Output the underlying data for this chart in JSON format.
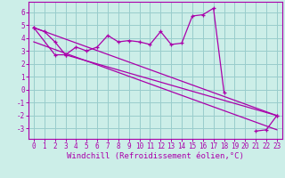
{
  "bg_color": "#cceee8",
  "grid_color": "#99cccc",
  "line_color": "#aa00aa",
  "xlabel": "Windchill (Refroidissement éolien,°C)",
  "xlim": [
    -0.5,
    23.5
  ],
  "ylim": [
    -3.8,
    6.8
  ],
  "yticks": [
    -3,
    -2,
    -1,
    0,
    1,
    2,
    3,
    4,
    5,
    6
  ],
  "xticks": [
    0,
    1,
    2,
    3,
    4,
    5,
    6,
    7,
    8,
    9,
    10,
    11,
    12,
    13,
    14,
    15,
    16,
    17,
    18,
    19,
    20,
    21,
    22,
    23
  ],
  "series1_x": [
    0,
    1,
    2,
    3,
    4,
    5,
    6,
    7,
    8,
    9,
    10,
    11,
    12,
    13,
    14,
    15,
    16,
    17,
    18,
    21,
    22,
    23
  ],
  "series1_y": [
    4.8,
    4.5,
    3.7,
    2.7,
    3.3,
    3.0,
    3.3,
    4.2,
    3.7,
    3.8,
    3.7,
    3.5,
    4.5,
    3.5,
    3.6,
    5.7,
    5.8,
    6.3,
    -0.2,
    -3.2,
    -3.1,
    -2.0
  ],
  "series2_x": [
    0,
    2,
    3,
    23
  ],
  "series2_y": [
    4.8,
    2.7,
    2.7,
    -2.0
  ],
  "series3_x": [
    0,
    23
  ],
  "series3_y": [
    4.8,
    -2.0
  ],
  "series4_x": [
    0,
    23
  ],
  "series4_y": [
    3.7,
    -3.1
  ],
  "font_family": "monospace",
  "xlabel_fontsize": 6.5,
  "tick_fontsize": 5.5
}
